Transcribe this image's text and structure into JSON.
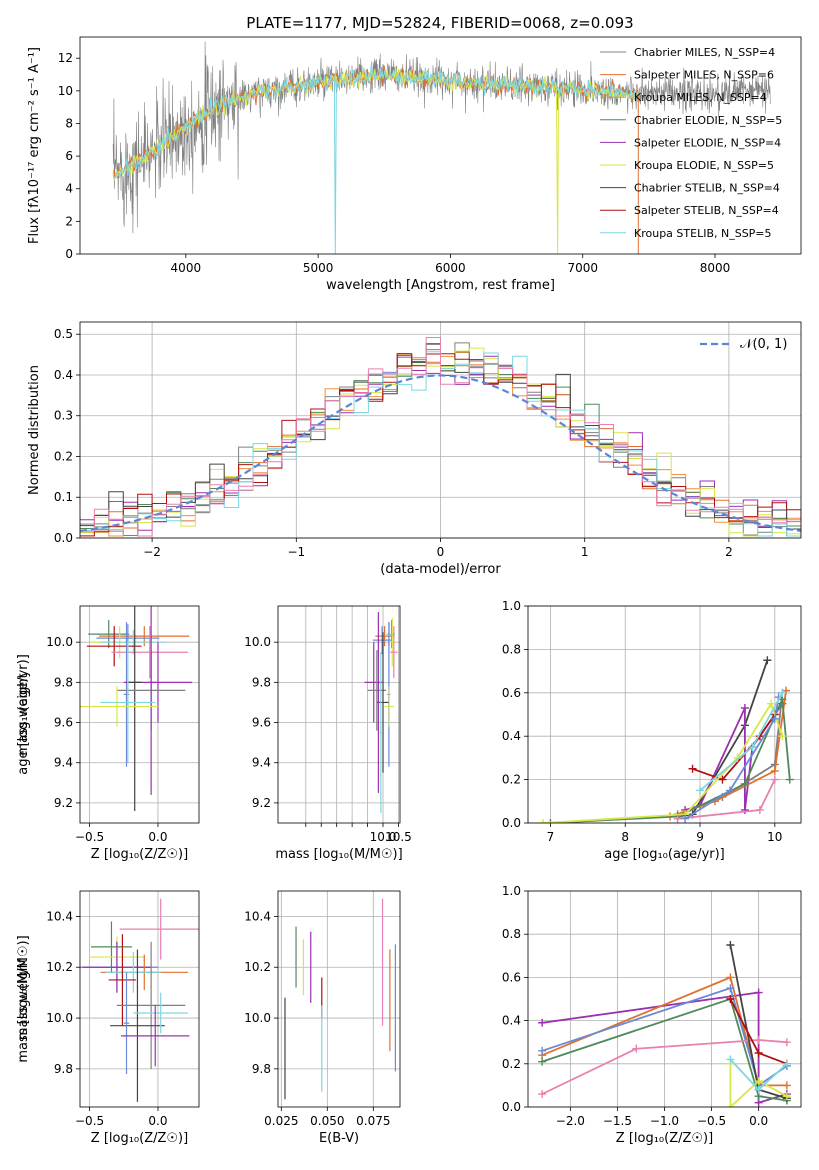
{
  "figure_title": "PLATE=1177, MJD=52824, FIBERID=0068, z=0.093",
  "legend": [
    {
      "label": "Chabrier MILES, N_SSP=4",
      "color": "#808080"
    },
    {
      "label": "Salpeter MILES, N_SSP=6",
      "color": "#e07030"
    },
    {
      "label": "Kroupa MILES, N_SSP=4",
      "color": "#f09040"
    },
    {
      "label": "Chabrier ELODIE, N_SSP=5",
      "color": "#4f8a5a"
    },
    {
      "label": "Salpeter ELODIE, N_SSP=4",
      "color": "#9b30b0"
    },
    {
      "label": "Kroupa ELODIE, N_SSP=5",
      "color": "#d9e64a"
    },
    {
      "label": "Chabrier STELIB, N_SSP=4",
      "color": "#444444"
    },
    {
      "label": "Salpeter STELIB, N_SSP=4",
      "color": "#b01010"
    },
    {
      "label": "Kroupa STELIB, N_SSP=5",
      "color": "#7dd6e0"
    }
  ],
  "extra_colors": {
    "pink": "#e880b0",
    "blue": "#6a8ad6"
  },
  "chart_data": [
    {
      "id": "spectrum",
      "type": "line",
      "xlabel": "wavelength [Angstrom, rest frame]",
      "ylabel": "Flux [fλ10⁻¹⁷ erg cm⁻² s⁻¹ A⁻¹]",
      "xlim": [
        3200,
        8650
      ],
      "ylim": [
        0,
        13.3
      ],
      "xticks": [
        4000,
        5000,
        6000,
        7000,
        8000
      ],
      "yticks": [
        0,
        2,
        4,
        6,
        8,
        10,
        12
      ],
      "legend_position": "upper right",
      "grid": false,
      "continuum_knots": [
        [
          3500,
          5.0
        ],
        [
          3700,
          6.0
        ],
        [
          3900,
          7.2
        ],
        [
          4100,
          8.4
        ],
        [
          4300,
          9.3
        ],
        [
          4600,
          10.0
        ],
        [
          5000,
          10.5
        ],
        [
          5500,
          11.0
        ],
        [
          6000,
          10.6
        ],
        [
          6500,
          10.3
        ],
        [
          7000,
          10.1
        ],
        [
          7400,
          9.8
        ],
        [
          8000,
          9.8
        ],
        [
          8400,
          10.1
        ]
      ],
      "data_range": [
        3450,
        8420
      ],
      "model_range": [
        3450,
        7420
      ]
    },
    {
      "id": "residuals",
      "type": "histogram",
      "xlabel": "(data-model)/error",
      "ylabel": "Normed distribution",
      "xlim": [
        -2.5,
        2.5
      ],
      "ylim": [
        0,
        0.53
      ],
      "xticks": [
        -2,
        -1,
        0,
        1,
        2
      ],
      "yticks": [
        0.0,
        0.1,
        0.2,
        0.3,
        0.4,
        0.5
      ],
      "grid": true,
      "legend": "𝒩(0, 1)",
      "legend_position": "upper right",
      "bin_width": 0.1
    },
    {
      "id": "age-vs-Z",
      "type": "scatter",
      "xlabel": "Z [log₁₀(Z/Z☉)]",
      "ylabel": "age  [log₁₀(age/yr)]",
      "xlim": [
        -0.57,
        0.3
      ],
      "ylim": [
        9.1,
        10.18
      ],
      "xticks": [
        -0.5,
        0.0
      ],
      "yticks": [
        9.2,
        9.4,
        9.6,
        9.8,
        10.0
      ],
      "grid": true,
      "points": [
        {
          "c": 3,
          "x": -0.36,
          "y": 10.04,
          "xe": 0.15,
          "ye": 0.07
        },
        {
          "c": 2,
          "x": -0.1,
          "y": 10.03,
          "xe": 0.33,
          "ye": 0.05
        },
        {
          "c": 9,
          "x": -0.22,
          "y": 10.02,
          "xe": 0.23,
          "ye": 0.07
        },
        {
          "c": 5,
          "x": -0.28,
          "y": 10.0,
          "xe": 0.22,
          "ye": 0.08
        },
        {
          "c": 8,
          "x": -0.18,
          "y": 10.0,
          "xe": 0.24,
          "ye": 0.06
        },
        {
          "c": 7,
          "x": -0.32,
          "y": 9.98,
          "xe": 0.2,
          "ye": 0.1
        },
        {
          "c": 10,
          "x": -0.06,
          "y": 9.95,
          "xe": 0.28,
          "ye": 0.13
        },
        {
          "c": 9,
          "x": -0.23,
          "y": 9.74,
          "xe": 0.02,
          "ye": 0.36
        },
        {
          "c": 4,
          "x": 0.0,
          "y": 9.8,
          "xe": 0.25,
          "ye": 0.2
        },
        {
          "c": 6,
          "x": -0.17,
          "y": 9.8,
          "xe": 0.05,
          "ye": 0.64
        },
        {
          "c": 1,
          "x": -0.05,
          "y": 9.76,
          "xe": 0.25,
          "ye": 0.2
        },
        {
          "c": 4,
          "x": -0.05,
          "y": 9.8,
          "xe": 0.02,
          "ye": 0.56
        },
        {
          "c": 8,
          "x": -0.22,
          "y": 9.7,
          "xe": 0.2,
          "ye": 0.3
        },
        {
          "c": 5,
          "x": -0.3,
          "y": 9.68,
          "xe": 0.3,
          "ye": 0.1
        }
      ]
    },
    {
      "id": "age-vs-mass",
      "type": "scatter",
      "xlabel": "mass [log₁₀(M/M☉)]",
      "ylabel": "",
      "xlim": [
        6.6,
        10.55
      ],
      "ylim": [
        9.1,
        10.18
      ],
      "xticks": [
        7.5,
        8.0,
        8.5,
        9.0,
        9.5,
        10.0,
        10.5
      ],
      "xtick_labels_shown": [
        "10.0",
        "10.5"
      ],
      "yticks": [
        9.2,
        9.4,
        9.6,
        9.8,
        10.0
      ],
      "grid": true,
      "points": [
        {
          "c": 3,
          "x": 10.28,
          "y": 10.04,
          "xe": 0.1,
          "ye": 0.07
        },
        {
          "c": 2,
          "x": 10.05,
          "y": 10.03,
          "xe": 0.3,
          "ye": 0.05
        },
        {
          "c": 9,
          "x": 9.97,
          "y": 10.01,
          "xe": 0.3,
          "ye": 0.07
        },
        {
          "c": 8,
          "x": 10.2,
          "y": 10.04,
          "xe": 0.1,
          "ye": 0.06
        },
        {
          "c": 5,
          "x": 10.3,
          "y": 10.0,
          "xe": 0.12,
          "ye": 0.12
        },
        {
          "c": 10,
          "x": 10.35,
          "y": 9.95,
          "xe": 0.12,
          "ye": 0.13
        },
        {
          "c": 9,
          "x": 10.19,
          "y": 9.74,
          "xe": 0.05,
          "ye": 0.36
        },
        {
          "c": 4,
          "x": 9.7,
          "y": 9.8,
          "xe": 0.3,
          "ye": 0.2
        },
        {
          "c": 1,
          "x": 9.8,
          "y": 9.76,
          "xe": 0.3,
          "ye": 0.2
        },
        {
          "c": 6,
          "x": 10.0,
          "y": 9.7,
          "xe": 0.2,
          "ye": 0.35
        },
        {
          "c": 4,
          "x": 9.85,
          "y": 9.7,
          "xe": 0.05,
          "ye": 0.45
        },
        {
          "c": 5,
          "x": 10.2,
          "y": 9.68,
          "xe": 0.15,
          "ye": 0.1
        },
        {
          "c": 8,
          "x": 9.93,
          "y": 9.55,
          "xe": 0.03,
          "ye": 0.4
        }
      ]
    },
    {
      "id": "massweight-vs-age",
      "type": "line",
      "xlabel": "age  [log₁₀(age/yr)]",
      "ylabel": "mass weight",
      "xlim": [
        6.7,
        10.35
      ],
      "ylim": [
        0,
        1.0
      ],
      "xticks": [
        7,
        8,
        9,
        10
      ],
      "yticks": [
        0.0,
        0.2,
        0.4,
        0.6,
        0.8,
        1.0
      ],
      "grid": true,
      "series": [
        {
          "c": 6,
          "pts": [
            [
              8.7,
              0.03
            ],
            [
              8.9,
              0.04
            ],
            [
              9.6,
              0.45
            ],
            [
              9.9,
              0.75
            ]
          ]
        },
        {
          "c": 4,
          "pts": [
            [
              8.8,
              0.06
            ],
            [
              9.0,
              0.08
            ],
            [
              9.6,
              0.53
            ],
            [
              9.6,
              0.06
            ],
            [
              9.7,
              0.35
            ],
            [
              10.1,
              0.55
            ]
          ]
        },
        {
          "c": 7,
          "pts": [
            [
              8.9,
              0.25
            ],
            [
              9.3,
              0.2
            ],
            [
              9.8,
              0.4
            ],
            [
              10.0,
              0.5
            ]
          ]
        },
        {
          "c": 1,
          "pts": [
            [
              8.7,
              0.04
            ],
            [
              9.3,
              0.12
            ],
            [
              10.0,
              0.27
            ],
            [
              10.1,
              0.6
            ]
          ]
        },
        {
          "c": 2,
          "pts": [
            [
              8.6,
              0.03
            ],
            [
              9.2,
              0.1
            ],
            [
              10.0,
              0.24
            ],
            [
              10.15,
              0.61
            ]
          ]
        },
        {
          "c": 3,
          "pts": [
            [
              7.0,
              0.0
            ],
            [
              8.7,
              0.03
            ],
            [
              9.6,
              0.18
            ],
            [
              10.1,
              0.57
            ],
            [
              10.2,
              0.2
            ]
          ]
        },
        {
          "c": 5,
          "pts": [
            [
              6.9,
              0.0
            ],
            [
              8.8,
              0.04
            ],
            [
              9.5,
              0.3
            ],
            [
              9.95,
              0.55
            ],
            [
              10.1,
              0.4
            ]
          ]
        },
        {
          "c": 10,
          "pts": [
            [
              8.7,
              0.02
            ],
            [
              9.8,
              0.06
            ],
            [
              10.0,
              0.2
            ]
          ]
        },
        {
          "c": 9,
          "pts": [
            [
              8.8,
              0.02
            ],
            [
              9.4,
              0.15
            ],
            [
              10.0,
              0.48
            ],
            [
              10.05,
              0.58
            ]
          ]
        },
        {
          "c": 8,
          "pts": [
            [
              9.0,
              0.15
            ],
            [
              9.7,
              0.35
            ],
            [
              10.1,
              0.6
            ]
          ]
        }
      ]
    },
    {
      "id": "mass-vs-Z",
      "type": "scatter",
      "xlabel": "Z [log₁₀(Z/Z☉)]",
      "ylabel": "mass [log₁₀(M/M☉)]",
      "xlim": [
        -0.57,
        0.3
      ],
      "ylim": [
        9.65,
        10.5
      ],
      "xticks": [
        -0.5,
        0.0
      ],
      "yticks": [
        9.8,
        10.0,
        10.2,
        10.4
      ],
      "grid": true,
      "points": [
        {
          "c": 10,
          "x": 0.02,
          "y": 10.35,
          "xe": 0.3,
          "ye": 0.12
        },
        {
          "c": 3,
          "x": -0.34,
          "y": 10.28,
          "xe": 0.15,
          "ye": 0.1
        },
        {
          "c": 5,
          "x": -0.3,
          "y": 10.24,
          "xe": 0.2,
          "ye": 0.08
        },
        {
          "c": 9,
          "x": -0.3,
          "y": 10.2,
          "xe": 0.3,
          "ye": 0.1
        },
        {
          "c": 4,
          "x": -0.3,
          "y": 10.2,
          "xe": 0.25,
          "ye": 0.1
        },
        {
          "c": 2,
          "x": -0.1,
          "y": 10.18,
          "xe": 0.32,
          "ye": 0.07
        },
        {
          "c": 8,
          "x": -0.18,
          "y": 10.18,
          "xe": 0.2,
          "ye": 0.08
        },
        {
          "c": 7,
          "x": -0.26,
          "y": 10.15,
          "xe": 0.1,
          "ye": 0.18
        },
        {
          "c": 1,
          "x": -0.05,
          "y": 10.05,
          "xe": 0.25,
          "ye": 0.25
        },
        {
          "c": 6,
          "x": -0.15,
          "y": 9.97,
          "xe": 0.2,
          "ye": 0.3
        },
        {
          "c": 9,
          "x": -0.23,
          "y": 9.98,
          "xe": 0.02,
          "ye": 0.2
        },
        {
          "c": 8,
          "x": 0.02,
          "y": 10.02,
          "xe": 0.2,
          "ye": 0.08
        },
        {
          "c": 4,
          "x": -0.02,
          "y": 9.93,
          "xe": 0.25,
          "ye": 0.12
        }
      ]
    },
    {
      "id": "mass-vs-EBV",
      "type": "scatter",
      "xlabel": "E(B-V)",
      "ylabel": "",
      "xlim": [
        0.0232,
        0.0895
      ],
      "ylim": [
        9.65,
        10.5
      ],
      "xticks": [
        0.025,
        0.05,
        0.075
      ],
      "yticks": [
        9.8,
        10.0,
        10.2,
        10.4
      ],
      "grid": true,
      "points": [
        {
          "c": 6,
          "x": 0.027,
          "y": 9.88,
          "xe": 0,
          "ye": 0.2
        },
        {
          "c": 3,
          "x": 0.033,
          "y": 10.24,
          "xe": 0,
          "ye": 0.12
        },
        {
          "c": 5,
          "x": 0.037,
          "y": 10.2,
          "xe": 0,
          "ye": 0.11
        },
        {
          "c": 4,
          "x": 0.041,
          "y": 10.2,
          "xe": 0,
          "ye": 0.14
        },
        {
          "c": 7,
          "x": 0.047,
          "y": 10.08,
          "xe": 0,
          "ye": 0.08
        },
        {
          "c": 8,
          "x": 0.047,
          "y": 9.88,
          "xe": 0,
          "ye": 0.17
        },
        {
          "c": 10,
          "x": 0.08,
          "y": 10.22,
          "xe": 0,
          "ye": 0.25
        },
        {
          "c": 2,
          "x": 0.084,
          "y": 10.07,
          "xe": 0,
          "ye": 0.2
        },
        {
          "c": 9,
          "x": 0.087,
          "y": 10.04,
          "xe": 0,
          "ye": 0.25
        }
      ]
    },
    {
      "id": "massweight-vs-Z",
      "type": "line",
      "xlabel": "Z [log₁₀(Z/Z☉)]",
      "ylabel": "mass weight",
      "xlim": [
        -2.45,
        0.45
      ],
      "ylim": [
        0,
        1.0
      ],
      "xticks": [
        -2.0,
        -1.5,
        -1.0,
        -0.5,
        0.0
      ],
      "yticks": [
        0.0,
        0.2,
        0.4,
        0.6,
        0.8,
        1.0
      ],
      "grid": true,
      "series": [
        {
          "c": 4,
          "pts": [
            [
              -2.3,
              0.39
            ],
            [
              0.0,
              0.53
            ],
            [
              0.0,
              0.02
            ],
            [
              0.3,
              0.06
            ]
          ]
        },
        {
          "c": 2,
          "pts": [
            [
              -2.3,
              0.24
            ],
            [
              -0.3,
              0.6
            ],
            [
              0.0,
              0.1
            ],
            [
              0.3,
              0.1
            ]
          ]
        },
        {
          "c": 9,
          "pts": [
            [
              -2.3,
              0.26
            ],
            [
              -0.3,
              0.55
            ],
            [
              0.0,
              0.1
            ],
            [
              0.3,
              0.19
            ]
          ]
        },
        {
          "c": 3,
          "pts": [
            [
              -2.3,
              0.21
            ],
            [
              -0.3,
              0.5
            ],
            [
              0.0,
              0.05
            ],
            [
              0.3,
              0.03
            ]
          ]
        },
        {
          "c": 10,
          "pts": [
            [
              -2.3,
              0.06
            ],
            [
              -1.3,
              0.27
            ],
            [
              0.0,
              0.31
            ],
            [
              0.3,
              0.3
            ]
          ]
        },
        {
          "c": 6,
          "pts": [
            [
              -0.3,
              0.75
            ],
            [
              0.0,
              0.08
            ],
            [
              0.3,
              0.04
            ]
          ]
        },
        {
          "c": 7,
          "pts": [
            [
              -0.3,
              0.5
            ],
            [
              0.0,
              0.25
            ],
            [
              0.3,
              0.2
            ]
          ]
        },
        {
          "c": 5,
          "pts": [
            [
              -0.3,
              0.2
            ],
            [
              -0.3,
              0.0
            ],
            [
              0.0,
              0.12
            ],
            [
              0.3,
              0.05
            ]
          ]
        },
        {
          "c": 8,
          "pts": [
            [
              -0.3,
              0.22
            ],
            [
              0.0,
              0.08
            ],
            [
              0.3,
              0.2
            ]
          ]
        }
      ]
    }
  ]
}
